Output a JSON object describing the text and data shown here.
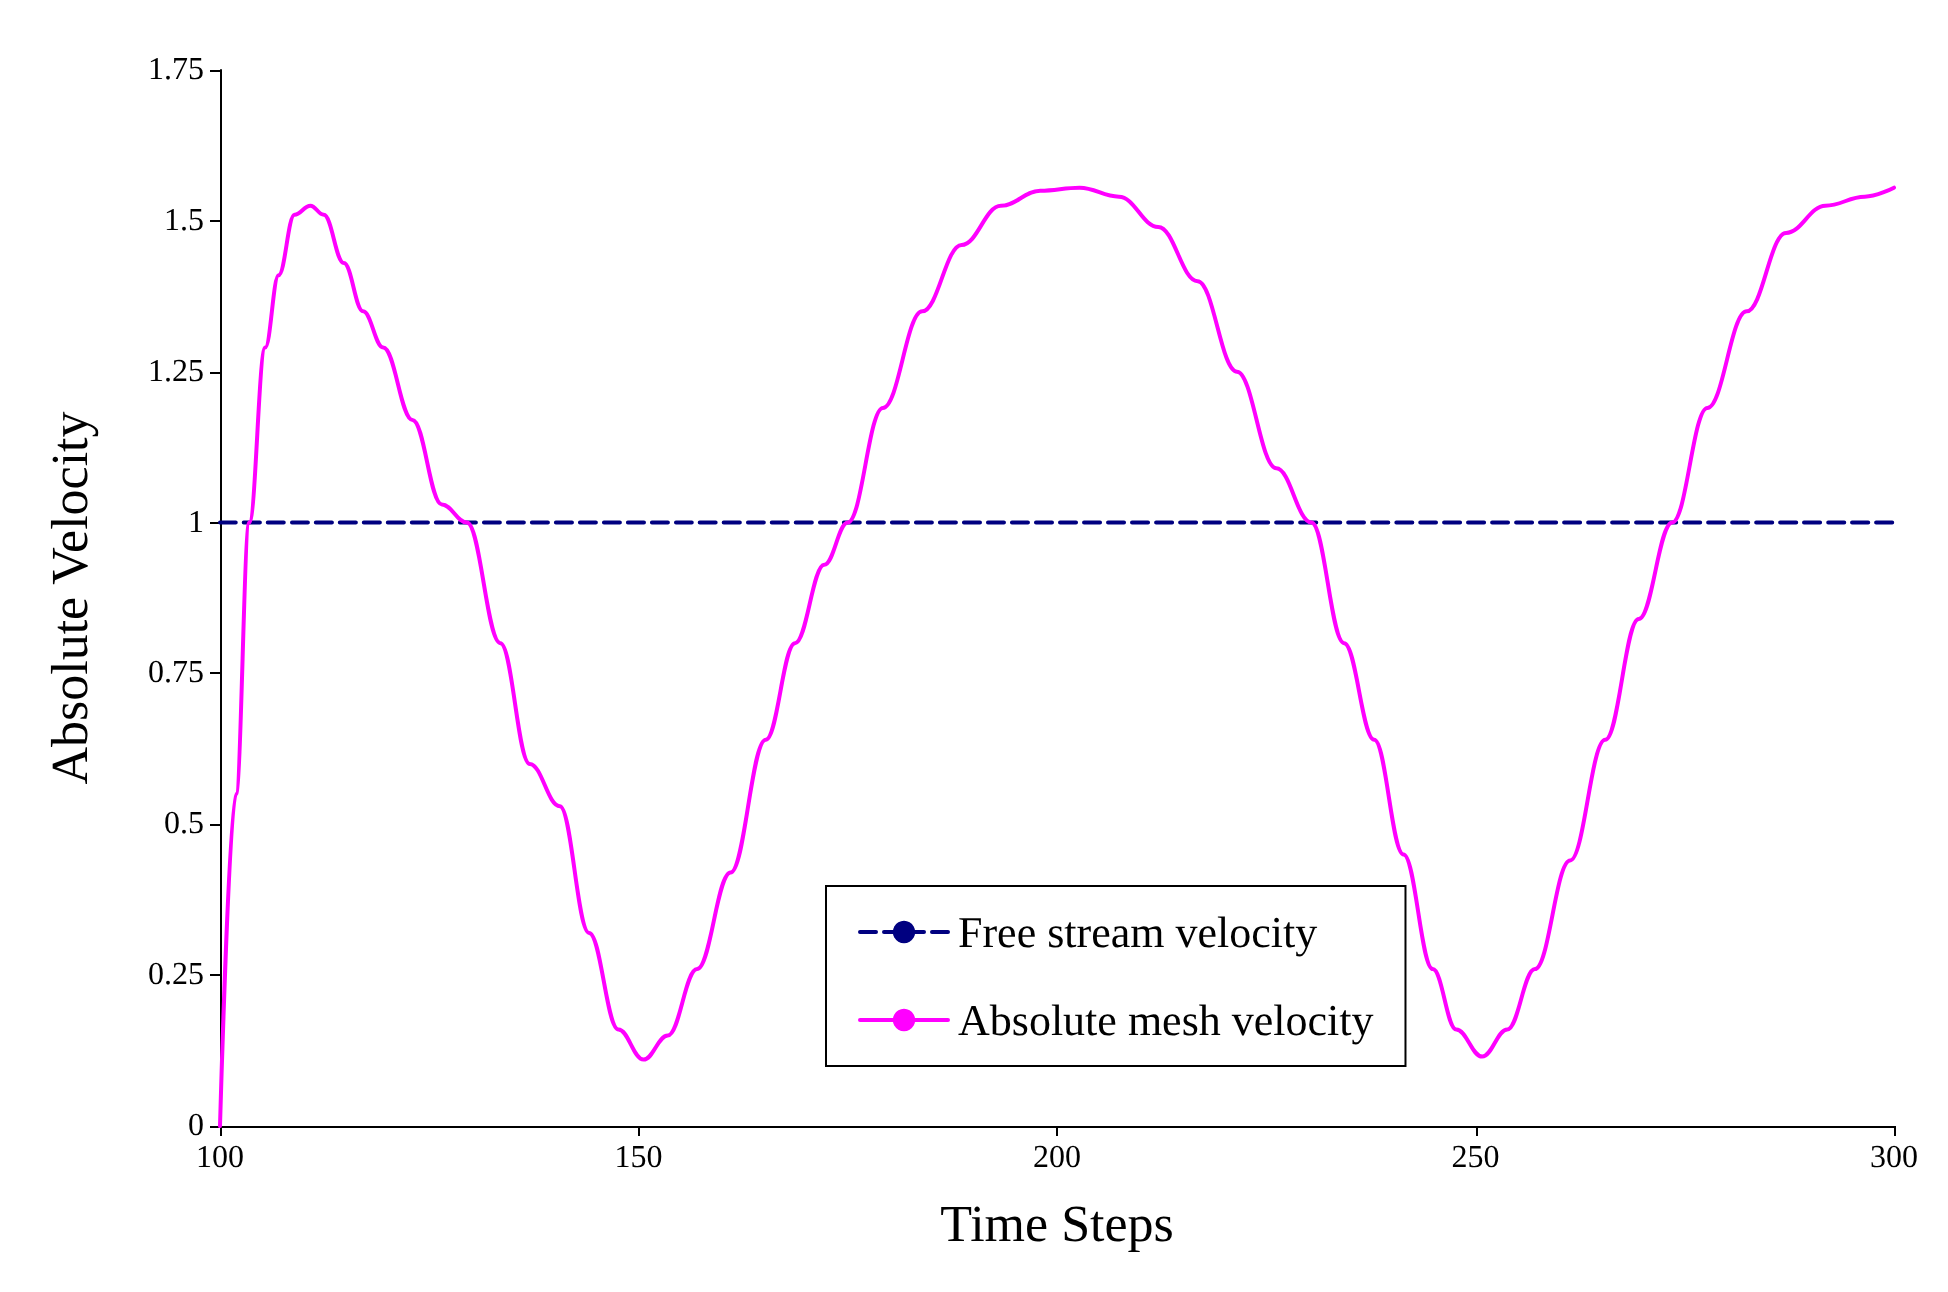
{
  "chart_data": {
    "type": "line",
    "xlabel": "Time Steps",
    "ylabel": "Absolute Velocity",
    "xlim": [
      100,
      300
    ],
    "xticks": [
      100,
      150,
      200,
      250,
      300
    ],
    "ylim": [
      0,
      1.75
    ],
    "yticks": [
      0,
      0.25,
      0.5,
      0.75,
      1,
      1.25,
      1.5,
      1.75
    ],
    "grid": false,
    "legend": "bottom",
    "marker": "none",
    "series": [
      {
        "name": "Free stream velocity",
        "color": "#000080",
        "line_style": "dashed",
        "x": [
          100,
          300
        ],
        "values": [
          1,
          1
        ]
      },
      {
        "name": "Absolute mesh velocity",
        "color": "#ff00ff",
        "line_style": "solid",
        "x": [
          100,
          101.9,
          103.5,
          105.4,
          107.0,
          108.9,
          110.8,
          112.4,
          114.8,
          117.1,
          119.5,
          123.0,
          126.5,
          129.5,
          133.5,
          137.0,
          140.6,
          144.1,
          147.6,
          150.6,
          153.5,
          157.0,
          161.0,
          165.2,
          168.7,
          172.2,
          175.0,
          179.2,
          183.9,
          188.6,
          193.3,
          198.0,
          202.7,
          207.4,
          212.1,
          216.8,
          221.5,
          226.2,
          230.4,
          234.3,
          237.9,
          241.4,
          244.9,
          247.7,
          250.8,
          253.8,
          257.1,
          261.3,
          265.5,
          269.5,
          273.5,
          277.7,
          282.4,
          287.1,
          291.8,
          296.5,
          300
        ],
        "values": [
          0,
          0.55,
          1.0,
          1.29,
          1.41,
          1.51,
          1.525,
          1.51,
          1.43,
          1.35,
          1.29,
          1.17,
          1.03,
          1.0,
          0.8,
          0.6,
          0.53,
          0.32,
          0.16,
          0.11,
          0.15,
          0.26,
          0.42,
          0.64,
          0.8,
          0.93,
          1.0,
          1.19,
          1.35,
          1.46,
          1.525,
          1.55,
          1.555,
          1.54,
          1.49,
          1.4,
          1.25,
          1.09,
          1.0,
          0.8,
          0.64,
          0.45,
          0.26,
          0.16,
          0.115,
          0.16,
          0.26,
          0.44,
          0.64,
          0.84,
          1.0,
          1.19,
          1.35,
          1.48,
          1.525,
          1.54,
          1.555
        ]
      }
    ]
  }
}
